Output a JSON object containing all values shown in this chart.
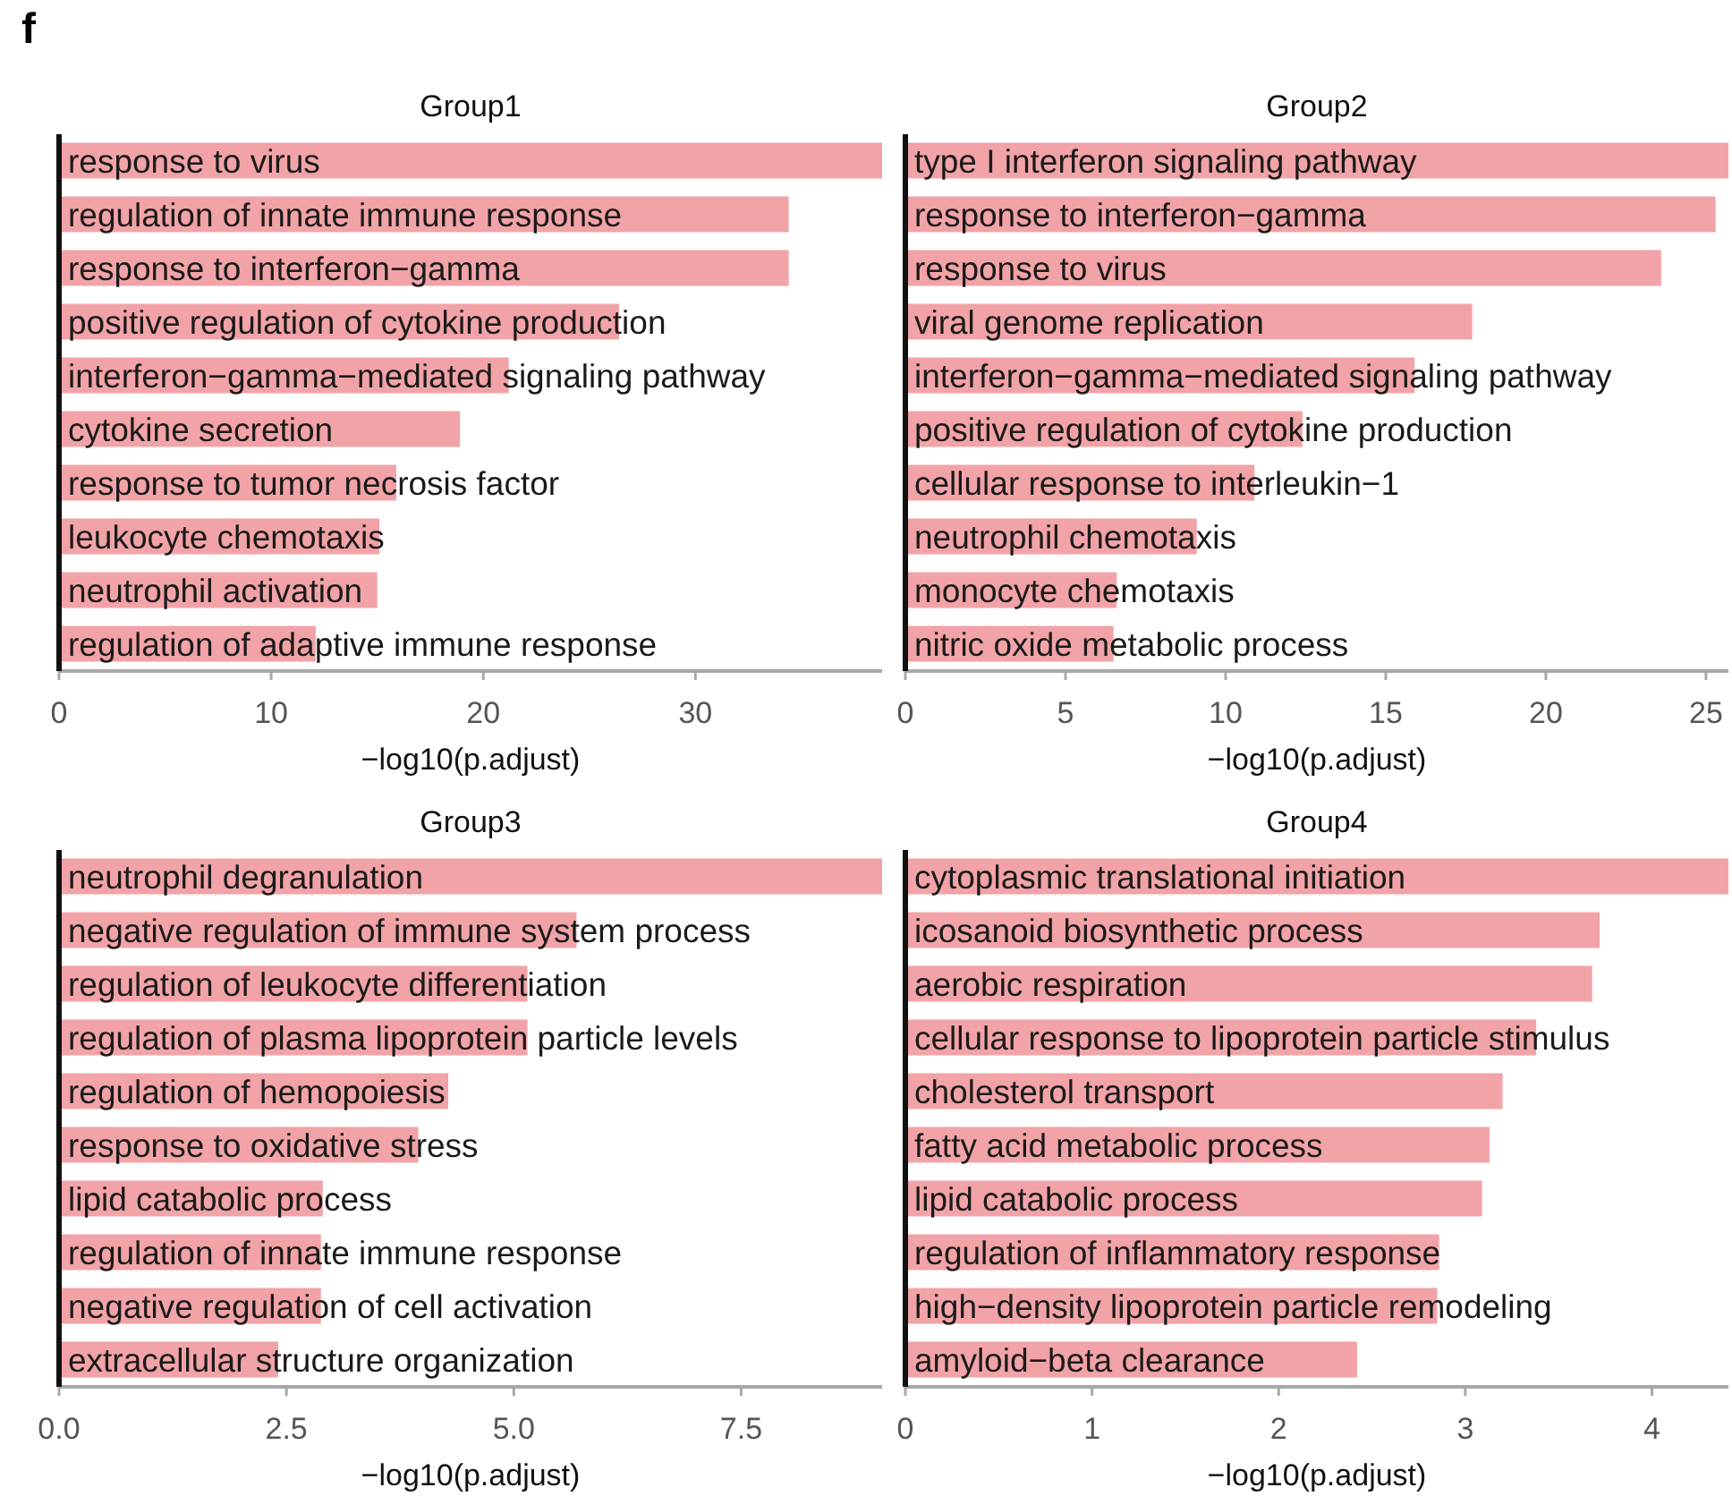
{
  "chart_data": [
    {
      "type": "bar",
      "orientation": "horizontal",
      "title": "Group1",
      "xlabel": "−log10(p.adjust)",
      "annotations": [
        "f"
      ],
      "categories": [
        "response to virus",
        "regulation of innate immune response",
        "response to interferon−gamma",
        "positive regulation of cytokine production",
        "interferon−gamma−mediated signaling pathway",
        "cytokine secretion",
        "response to tumor necrosis factor",
        "leukocyte chemotaxis",
        "neutrophil activation",
        "regulation of adaptive immune response"
      ],
      "values": [
        38.8,
        34.4,
        34.4,
        26.4,
        21.2,
        18.9,
        15.9,
        15.1,
        15.0,
        12.1
      ],
      "color": "#f2a3a7",
      "xlim": [
        0,
        38.8
      ],
      "xticks": [
        0,
        10,
        20,
        30
      ]
    },
    {
      "type": "bar",
      "orientation": "horizontal",
      "title": "Group2",
      "xlabel": "−log10(p.adjust)",
      "categories": [
        "type I interferon signaling pathway",
        "response to interferon−gamma",
        "response to virus",
        "viral genome replication",
        "interferon−gamma−mediated signaling pathway",
        "positive regulation of cytokine production",
        "cellular response to interleukin−1",
        "neutrophil chemotaxis",
        "monocyte chemotaxis",
        "nitric oxide metabolic process"
      ],
      "values": [
        25.7,
        25.3,
        23.6,
        17.7,
        15.9,
        12.4,
        10.9,
        9.1,
        6.6,
        6.5
      ],
      "color": "#f2a3a7",
      "xlim": [
        0,
        25.7
      ],
      "xticks": [
        0,
        5,
        10,
        15,
        20,
        25
      ]
    },
    {
      "type": "bar",
      "orientation": "horizontal",
      "title": "Group3",
      "xlabel": "−log10(p.adjust)",
      "categories": [
        "neutrophil degranulation",
        "negative regulation of immune system process",
        "regulation of leukocyte differentiation",
        "regulation of plasma lipoprotein particle levels",
        "regulation of hemopoiesis",
        "response to oxidative stress",
        "lipid catabolic process",
        "regulation of innate immune response",
        "negative regulation of cell activation",
        "extracellular structure organization"
      ],
      "values": [
        9.05,
        5.69,
        5.15,
        5.15,
        4.28,
        3.95,
        2.9,
        2.88,
        2.88,
        2.41
      ],
      "color": "#f2a3a7",
      "xlim": [
        0,
        9.05
      ],
      "xticks": [
        {
          "value": 0,
          "label": "0.0"
        },
        2.5,
        {
          "value": 5,
          "label": "5.0"
        },
        7.5
      ]
    },
    {
      "type": "bar",
      "orientation": "horizontal",
      "title": "Group4",
      "xlabel": "−log10(p.adjust)",
      "categories": [
        "cytoplasmic translational initiation",
        "icosanoid biosynthetic process",
        "aerobic respiration",
        "cellular response to lipoprotein particle stimulus",
        "cholesterol transport",
        "fatty acid metabolic process",
        "lipid catabolic process",
        "regulation of inflammatory response",
        "high−density lipoprotein particle remodeling",
        "amyloid−beta clearance"
      ],
      "values": [
        4.41,
        3.72,
        3.68,
        3.38,
        3.2,
        3.13,
        3.09,
        2.86,
        2.85,
        2.42
      ],
      "color": "#f2a3a7",
      "xlim": [
        0,
        4.41
      ],
      "xticks": [
        0,
        1,
        2,
        3,
        4
      ]
    }
  ]
}
